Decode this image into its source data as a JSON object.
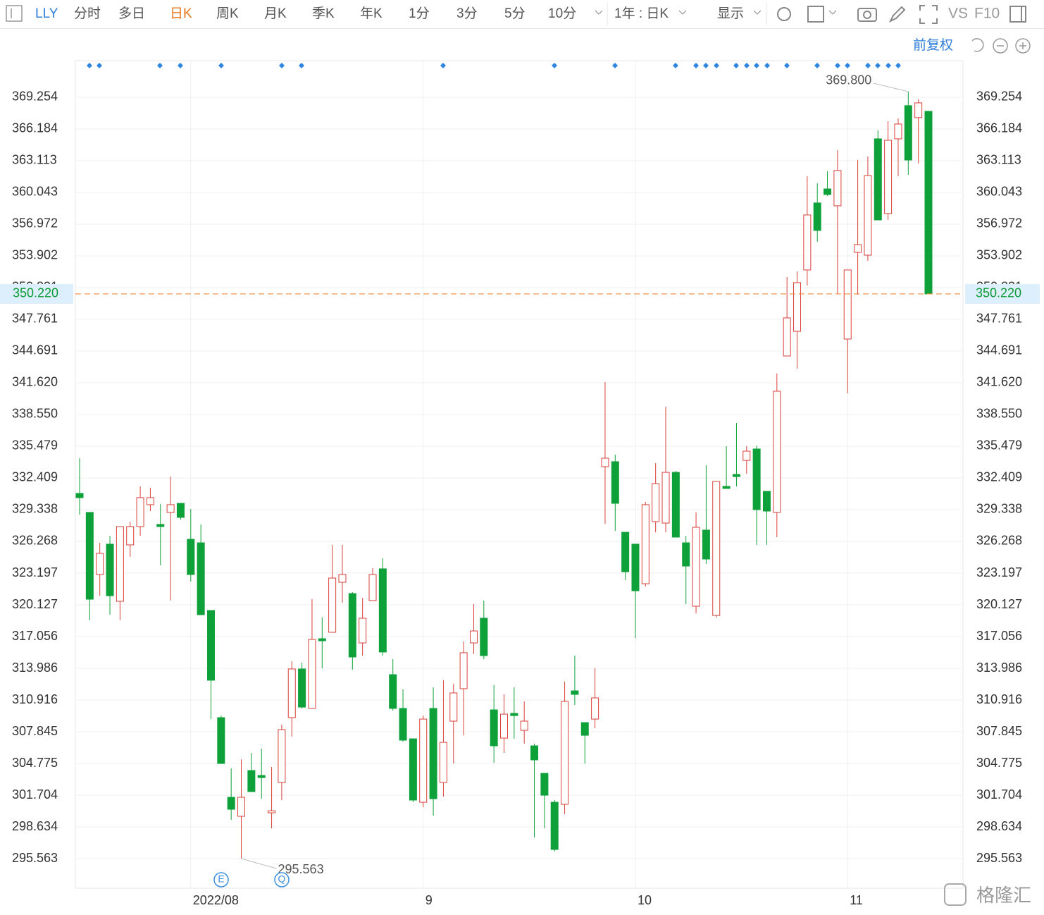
{
  "toolbar": {
    "symbol": "LLY",
    "periods": [
      "分时",
      "多日",
      "日K",
      "周K",
      "月K",
      "季K",
      "年K",
      "1分",
      "3分",
      "5分",
      "10分"
    ],
    "range": "1年 : 日K",
    "display": "显示",
    "vs": "VS",
    "f10": "F10"
  },
  "adjust": "前复权",
  "watermark": "格隆汇",
  "events": [
    "E",
    "Q"
  ],
  "chart_data": {
    "type": "candlestick",
    "categories": [
      null,
      null,
      null,
      null,
      null,
      null,
      null,
      null,
      null,
      null,
      null,
      "2022/08",
      null,
      null,
      null,
      null,
      null,
      null,
      null,
      null,
      null,
      null,
      null,
      null,
      null,
      null,
      null,
      null,
      null,
      null,
      null,
      null,
      null,
      null,
      "9",
      null,
      null,
      null,
      null,
      null,
      null,
      null,
      null,
      null,
      null,
      null,
      null,
      null,
      null,
      null,
      null,
      null,
      null,
      null,
      null,
      "10",
      null,
      null,
      null,
      null,
      null,
      null,
      null,
      null,
      null,
      null,
      null,
      null,
      null,
      null,
      null,
      null,
      null,
      null,
      null,
      null,
      "11",
      null,
      null,
      null,
      null,
      null,
      null,
      null,
      null
    ],
    "open": [
      330.91,
      329.07,
      323.06,
      326.0,
      320.47,
      325.93,
      327.7,
      329.82,
      327.91,
      329.07,
      329.95,
      326.47,
      326.13,
      319.58,
      309.21,
      301.5,
      299.66,
      304.09,
      303.61,
      300.0,
      302.93,
      309.21,
      313.92,
      310.1,
      316.85,
      317.47,
      322.31,
      321.22,
      316.44,
      320.54,
      323.61,
      313.37,
      310.1,
      307.16,
      301.02,
      310.1,
      302.93,
      308.87,
      312.01,
      316.44,
      318.83,
      309.96,
      307.23,
      309.62,
      307.98,
      306.48,
      303.82,
      301.02,
      300.82,
      311.8,
      308.73,
      309.07,
      333.5,
      333.98,
      327.15,
      326.0,
      322.17,
      328.18,
      328.04,
      332.95,
      326.13,
      319.99,
      327.36,
      319.1,
      331.59,
      332.75,
      334.11,
      335.21,
      331.11,
      329.07,
      344.21,
      346.6,
      352.54,
      359.02,
      360.38,
      358.75,
      345.85,
      354.24,
      353.97,
      365.23,
      358.0,
      365.23,
      368.44,
      367.28,
      367.89
    ],
    "high": [
      334.32,
      329.07,
      326.13,
      326.81,
      327.7,
      328.18,
      331.59,
      331.45,
      329.88,
      332.54,
      329.95,
      329.41,
      327.91,
      319.58,
      309.41,
      304.3,
      305.18,
      305.8,
      306.21,
      304.43,
      308.53,
      314.67,
      314.53,
      320.67,
      318.9,
      325.93,
      325.93,
      321.36,
      320.81,
      323.68,
      324.63,
      314.87,
      311.94,
      307.16,
      309.41,
      312.14,
      312.83,
      312.48,
      316.58,
      320.2,
      320.54,
      312.35,
      311.46,
      312.14,
      310.78,
      306.69,
      303.82,
      301.23,
      312.69,
      315.21,
      308.73,
      313.99,
      341.69,
      334.66,
      327.15,
      326.0,
      330.09,
      333.84,
      339.3,
      333.09,
      326.81,
      329.07,
      333.64,
      332.07,
      335.48,
      337.73,
      335.48,
      335.55,
      331.11,
      342.51,
      351.85,
      352.4,
      361.61,
      360.93,
      362.09,
      364.14,
      352.54,
      363.18,
      363.52,
      366.05,
      366.93,
      367.21,
      369.8,
      369.05,
      367.89
    ],
    "low": [
      328.86,
      318.63,
      321.01,
      319.17,
      318.63,
      324.77,
      326.81,
      329.2,
      323.95,
      320.54,
      328.38,
      322.38,
      319.17,
      309.07,
      304.77,
      299.32,
      295.563,
      302.05,
      301.36,
      298.5,
      301.23,
      307.37,
      310.1,
      310.1,
      313.99,
      317.47,
      320.33,
      313.85,
      315.21,
      320.54,
      315.21,
      309.89,
      306.89,
      301.02,
      300.54,
      299.73,
      301.57,
      304.77,
      307.5,
      315.35,
      314.87,
      304.84,
      305.8,
      307.16,
      306.69,
      297.61,
      298.5,
      296.25,
      299.86,
      310.44,
      304.77,
      308.19,
      327.97,
      327.29,
      322.52,
      316.92,
      321.9,
      327.15,
      327.15,
      326.68,
      320.2,
      319.31,
      324.08,
      318.9,
      331.39,
      331.59,
      332.82,
      325.93,
      325.93,
      326.68,
      344.21,
      342.98,
      351.04,
      355.27,
      359.7,
      350.22,
      340.6,
      350.15,
      353.42,
      357.38,
      357.38,
      361.61,
      361.75,
      362.84,
      350.22
    ],
    "close": [
      330.5,
      320.67,
      325.11,
      321.01,
      327.7,
      327.7,
      330.5,
      330.5,
      327.7,
      329.82,
      328.59,
      323.06,
      319.17,
      312.83,
      304.77,
      300.34,
      301.5,
      302.05,
      303.41,
      300.2,
      308.05,
      313.92,
      310.23,
      316.78,
      316.65,
      322.72,
      323.06,
      315.08,
      318.83,
      323.06,
      315.56,
      310.1,
      307.03,
      301.23,
      309.07,
      301.36,
      306.82,
      311.6,
      315.49,
      317.6,
      315.21,
      306.48,
      309.55,
      309.41,
      308.87,
      305.12,
      301.7,
      296.45,
      310.78,
      311.46,
      307.5,
      311.12,
      334.32,
      329.95,
      323.33,
      321.49,
      329.82,
      331.86,
      332.95,
      326.68,
      323.88,
      327.63,
      324.56,
      332.07,
      331.39,
      332.54,
      335.0,
      329.34,
      329.2,
      340.8,
      347.9,
      351.31,
      357.86,
      356.36,
      359.84,
      362.16,
      352.54,
      354.99,
      361.68,
      357.38,
      365.09,
      366.66,
      363.18,
      368.71,
      350.22
    ],
    "up_color": "#d9413a",
    "down_color": "#0ea13a",
    "ylim": [
      292.7,
      375.8
    ],
    "yticks": [
      369.254,
      366.184,
      363.113,
      360.043,
      356.972,
      353.902,
      350.831,
      347.761,
      344.691,
      {
        "value": 341.62,
        "label": "341.620"
      },
      {
        "value": 338.55,
        "label": "338.550"
      },
      335.479,
      332.409,
      329.338,
      326.268,
      323.197,
      320.127,
      317.056,
      313.986,
      310.916,
      307.845,
      304.775,
      301.704,
      298.634,
      295.563
    ],
    "grid": true,
    "last_price": {
      "value": 350.22,
      "label": "350.220"
    },
    "annotations": [
      {
        "value": 369.8,
        "label": "369.800"
      },
      {
        "value": 295.563,
        "label": "295.563"
      }
    ]
  }
}
